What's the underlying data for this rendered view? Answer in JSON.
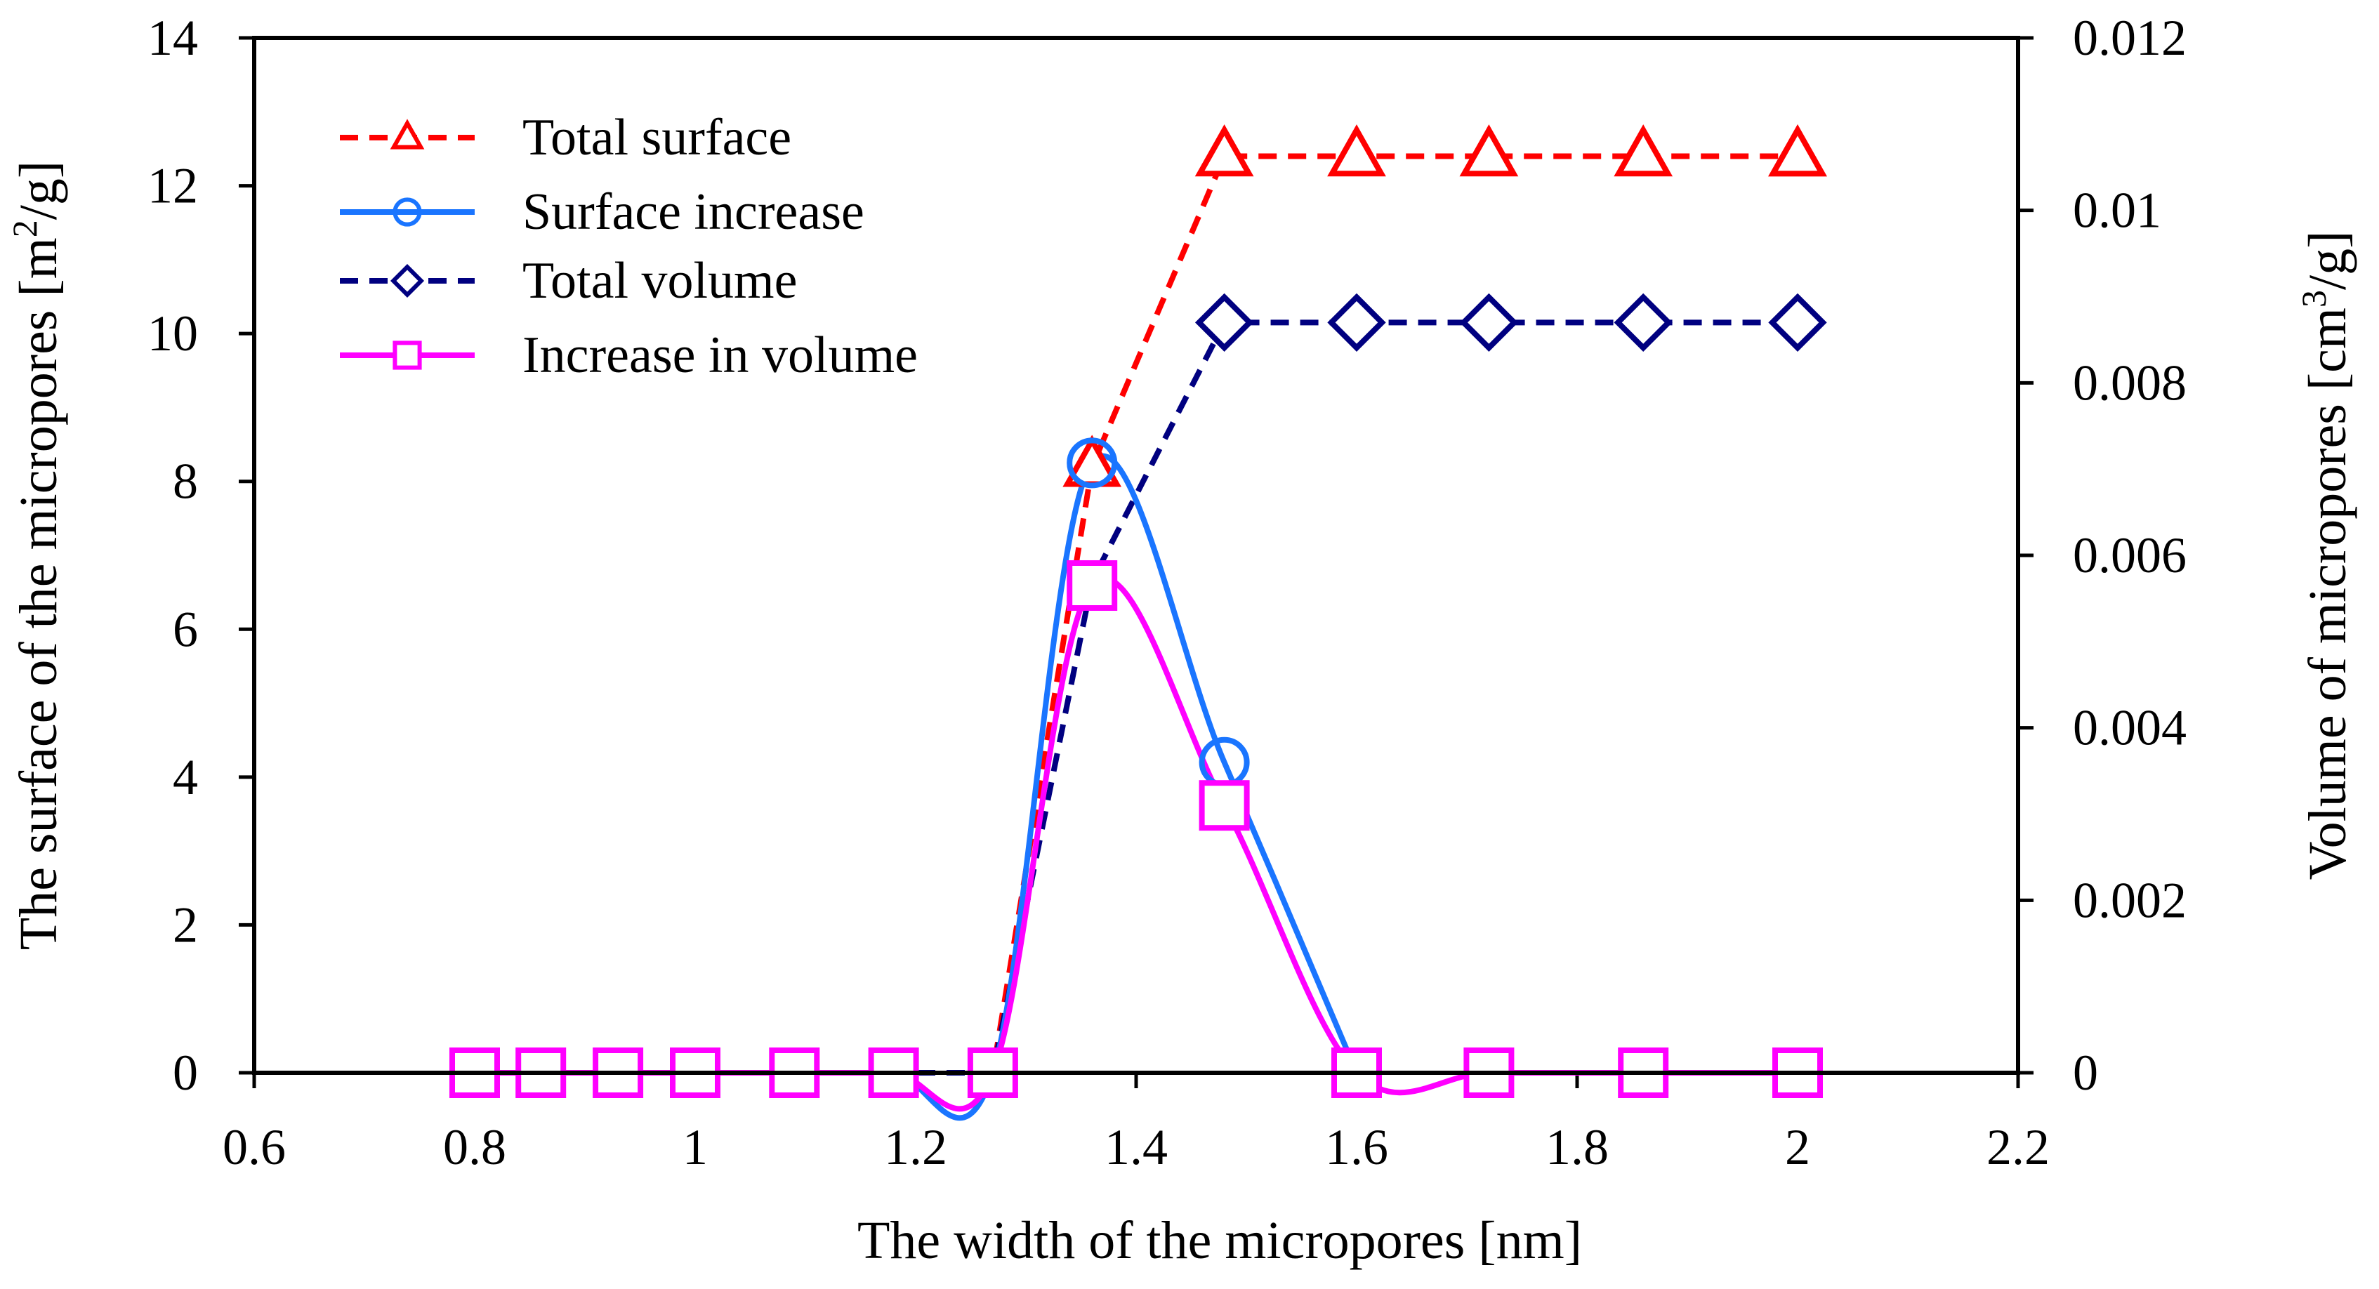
{
  "chart_data": {
    "type": "line",
    "title": "",
    "xlabel": "The width of the micropores [nm]",
    "ylabel_left": {
      "pre": "The surface of the micropores [m",
      "sup": "2",
      "post": "/g]"
    },
    "ylabel_right": {
      "pre": "Volume of micropores [cm",
      "sup": "3",
      "post": "/g]"
    },
    "xlim": [
      0.6,
      2.2
    ],
    "ylim_left": [
      0,
      14
    ],
    "ylim_right": [
      0,
      0.012
    ],
    "x_ticks": [
      "0.6",
      "0.8",
      "1",
      "1.2",
      "1.4",
      "1.6",
      "1.8",
      "2",
      "2.2"
    ],
    "y_left_ticks": [
      "0",
      "2",
      "4",
      "6",
      "8",
      "10",
      "12",
      "14"
    ],
    "y_right_ticks": [
      "0",
      "0.002",
      "0.004",
      "0.006",
      "0.008",
      "0.01",
      "0.012"
    ],
    "legend_position": "top-left",
    "colors": {
      "total_surface": "#ff0000",
      "surface_increase": "#1a75ff",
      "total_volume": "#000080",
      "increase_in_volume": "#ff00ff",
      "axes": "#000000"
    },
    "series": [
      {
        "id": "total_surface",
        "name": "Total surface",
        "axis": "left",
        "line": "dashed",
        "marker": "triangle",
        "markers_visible": [
          false,
          false,
          false,
          false,
          false,
          false,
          false,
          false,
          true,
          true,
          true,
          true,
          true,
          true,
          true
        ],
        "x": [
          0.8,
          0.86,
          0.93,
          1.0,
          1.09,
          1.18,
          1.24,
          1.27,
          1.36,
          1.48,
          1.6,
          1.72,
          1.86,
          2.0,
          2.0
        ],
        "y": [
          0,
          0,
          0,
          0,
          0,
          0,
          0,
          0,
          8.2,
          12.4,
          12.4,
          12.4,
          12.4,
          12.4,
          12.4
        ]
      },
      {
        "id": "surface_increase",
        "name": "Surface increase",
        "axis": "left",
        "line": "solid",
        "marker": "circle",
        "markers_visible": [
          false,
          false,
          false,
          false,
          false,
          false,
          false,
          true,
          true,
          false
        ],
        "x": [
          0.8,
          0.86,
          0.93,
          1.0,
          1.09,
          1.18,
          1.27,
          1.36,
          1.48,
          1.6
        ],
        "y": [
          0,
          0,
          0,
          0,
          0,
          0,
          0,
          8.25,
          4.2,
          0
        ]
      },
      {
        "id": "total_volume",
        "name": "Total volume",
        "axis": "right",
        "line": "dashed",
        "marker": "diamond",
        "markers_visible": [
          false,
          false,
          false,
          false,
          false,
          false,
          false,
          false,
          true,
          true,
          true,
          true,
          true
        ],
        "x": [
          0.8,
          0.86,
          0.93,
          1.0,
          1.09,
          1.18,
          1.27,
          1.36,
          1.48,
          1.6,
          1.72,
          1.86,
          2.0
        ],
        "y": [
          0,
          0,
          0,
          0,
          0,
          0,
          0,
          0.0057,
          0.0087,
          0.0087,
          0.0087,
          0.0087,
          0.0087
        ]
      },
      {
        "id": "increase_in_volume",
        "name": "Increase in volume",
        "axis": "right",
        "line": "solid",
        "marker": "square",
        "markers_visible": [
          true,
          true,
          true,
          true,
          true,
          true,
          true,
          true,
          true,
          true,
          true,
          true,
          true
        ],
        "x": [
          0.8,
          0.86,
          0.93,
          1.0,
          1.09,
          1.18,
          1.27,
          1.36,
          1.48,
          1.6,
          1.72,
          1.86,
          2.0
        ],
        "y": [
          0,
          0,
          0,
          0,
          0,
          0,
          0,
          0.00565,
          0.0031,
          0,
          0,
          0,
          0
        ]
      }
    ]
  }
}
